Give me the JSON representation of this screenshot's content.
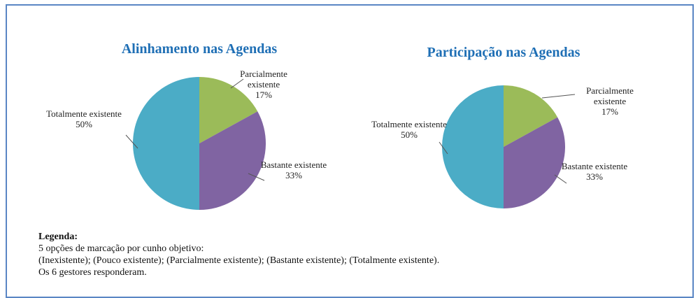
{
  "chart_data": [
    {
      "type": "pie",
      "title": "Alinhamento  nas Agendas",
      "categories": [
        "Parcialmente existente",
        "Bastante existente",
        "Totalmente existente"
      ],
      "values": [
        17,
        33,
        50
      ],
      "value_labels": [
        "17%",
        "33%",
        "50%"
      ],
      "colors": [
        "#9bbb59",
        "#8064a2",
        "#4bacc6"
      ]
    },
    {
      "type": "pie",
      "title": "Participação nas Agendas",
      "categories": [
        "Parcialmente existente",
        "Bastante existente",
        "Totalmente existente"
      ],
      "values": [
        17,
        33,
        50
      ],
      "value_labels": [
        "17%",
        "33%",
        "50%"
      ],
      "colors": [
        "#9bbb59",
        "#8064a2",
        "#4bacc6"
      ]
    }
  ],
  "legend": {
    "title": "Legenda:",
    "lines": [
      "5 opções de marcação por cunho objetivo:",
      "(Inexistente); (Pouco existente); (Parcialmente existente); (Bastante existente); (Totalmente existente).",
      "Os 6 gestores responderam."
    ]
  }
}
